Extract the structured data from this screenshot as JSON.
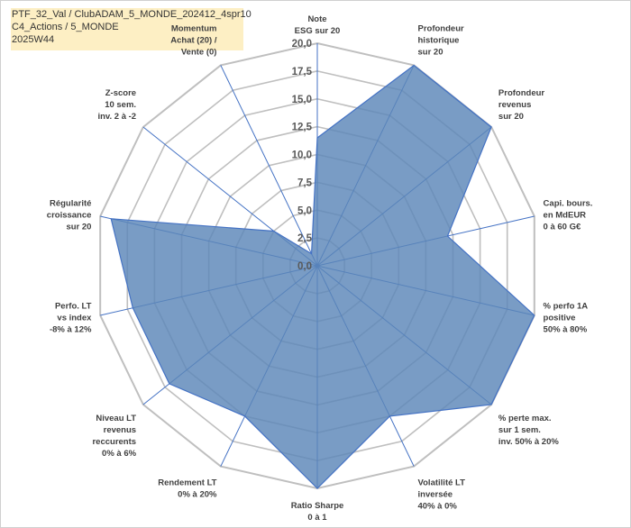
{
  "header": {
    "line1": "PTF_32_Val / ClubADAM_5_MONDE_202412_4spr10",
    "line2": "C4_Actions / 5_MONDE",
    "line3": "2025W44"
  },
  "chart_data": {
    "type": "radar",
    "axes": [
      "Note\nESG sur 20",
      "Profondeur\nhistorique\nsur 20",
      "Profondeur\nrevenus\nsur 20",
      "Capi. bours.\nen MdEUR\n0 à 60 G€",
      "% perfo 1A\npositive\n50% à 80%",
      "% perte max.\nsur 1 sem.\ninv. 50% à 20%",
      "Volatilité LT\ninversée\n40% à 0%",
      "Ratio Sharpe\n0 à 1",
      "Rendement LT\n0% à 20%",
      "Niveau LT\nrevenus\nreccurents\n0% à 6%",
      "Perfo. LT\nvs index\n-8% à 12%",
      "Régularité\ncroissance\nsur 20",
      "Z-score\n10 sem.\ninv. 2 à -2",
      "Momentum\nAchat (20) /\nVente (0)"
    ],
    "series": [
      {
        "name": "PTF_32_Val",
        "values": [
          11.5,
          20,
          20,
          12,
          20,
          20,
          15,
          20,
          15,
          17,
          17,
          19,
          5,
          1.2
        ]
      }
    ],
    "tick_labels": [
      "0,0",
      "2,5",
      "5,0",
      "7,5",
      "10,0",
      "12,5",
      "15,0",
      "17,5",
      "20,0"
    ],
    "ylim": [
      0,
      20
    ],
    "fill_color": "#5b86b8",
    "edge_color": "#4472c4",
    "grid_color": "#bfbfbf"
  }
}
